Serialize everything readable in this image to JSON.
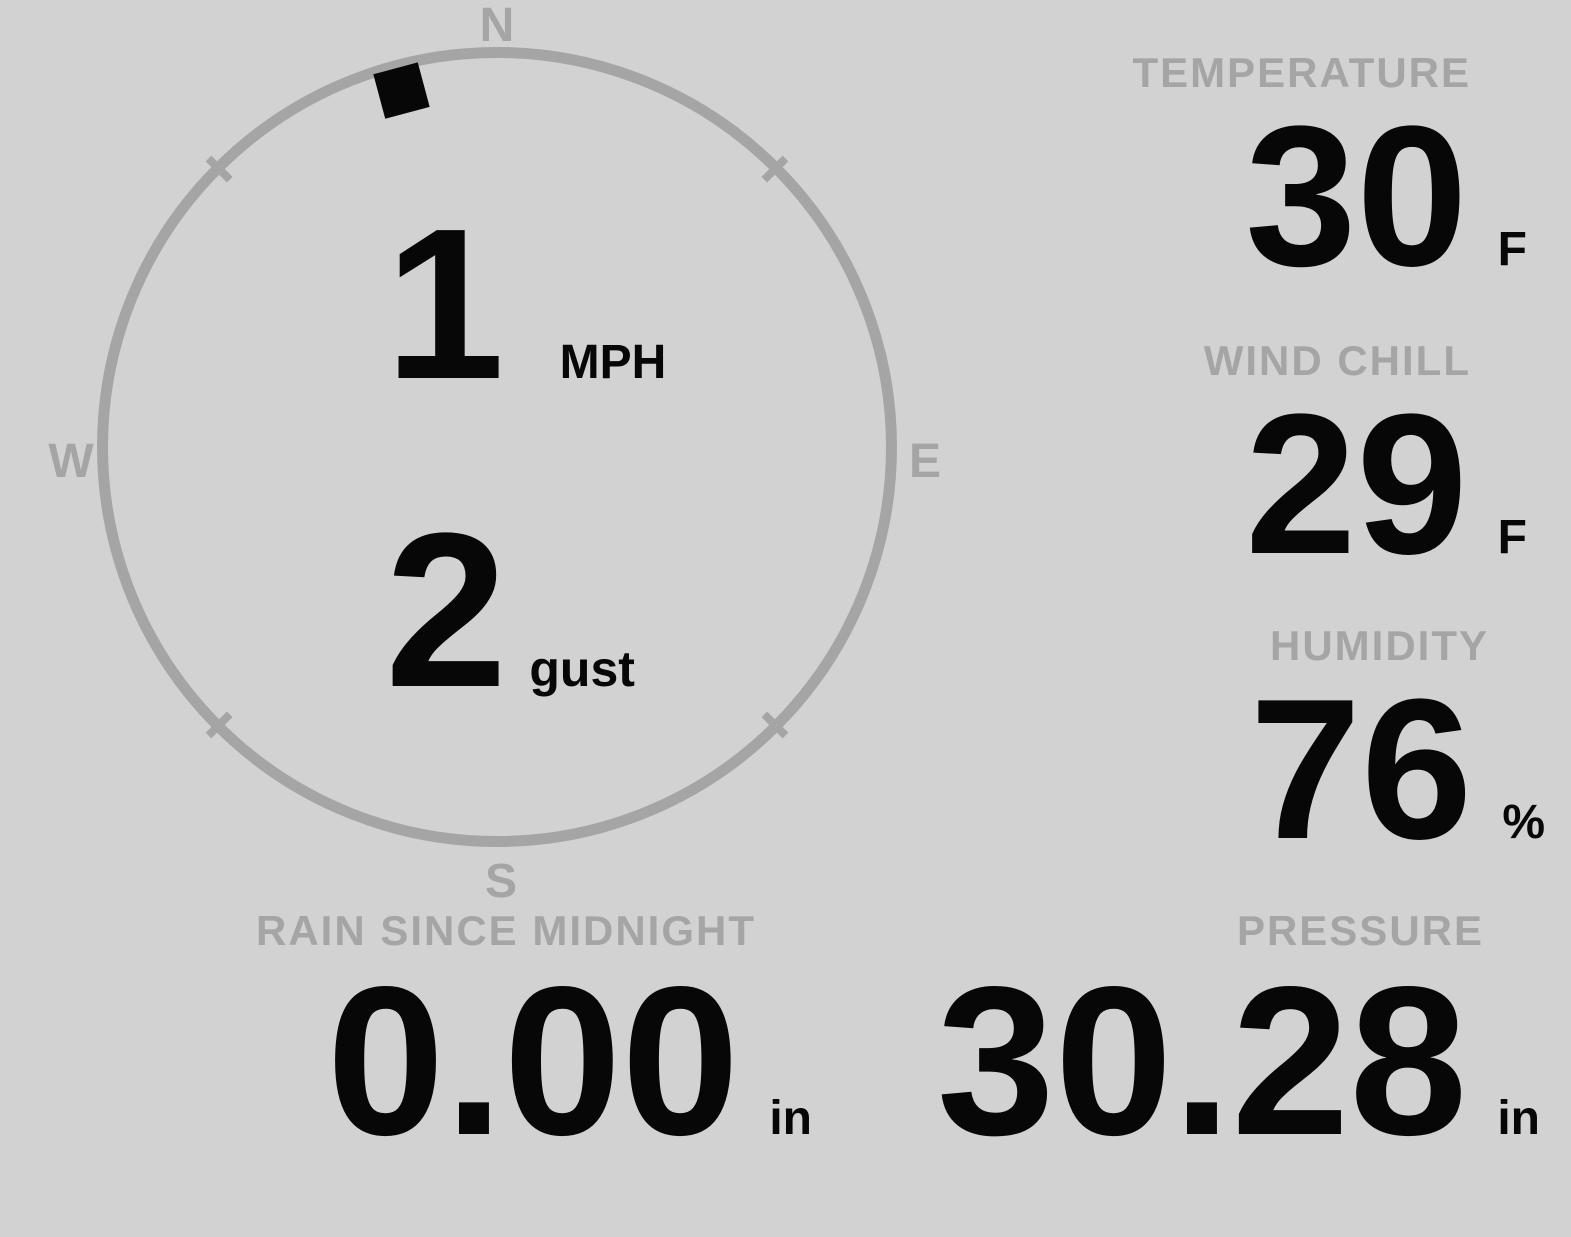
{
  "theme": {
    "background": "#d2d2d2",
    "muted_gray": "#a5a5a5",
    "value_black": "#070707"
  },
  "compass": {
    "cardinals": {
      "north": "N",
      "east": "E",
      "south": "S",
      "west": "W"
    },
    "wind_direction_deg": 345,
    "speed": {
      "value": "1",
      "unit": "MPH"
    },
    "gust": {
      "value": "2",
      "unit": "gust"
    }
  },
  "metrics": {
    "temperature": {
      "label": "TEMPERATURE",
      "value": "30",
      "unit": "F"
    },
    "wind_chill": {
      "label": "WIND CHILL",
      "value": "29",
      "unit": "F"
    },
    "humidity": {
      "label": "HUMIDITY",
      "value": "76",
      "unit": "%"
    },
    "rain_since_midnight": {
      "label": "RAIN SINCE MIDNIGHT",
      "value": "0.00",
      "unit": "in"
    },
    "pressure": {
      "label": "PRESSURE",
      "value": "30.28",
      "unit": "in"
    }
  }
}
